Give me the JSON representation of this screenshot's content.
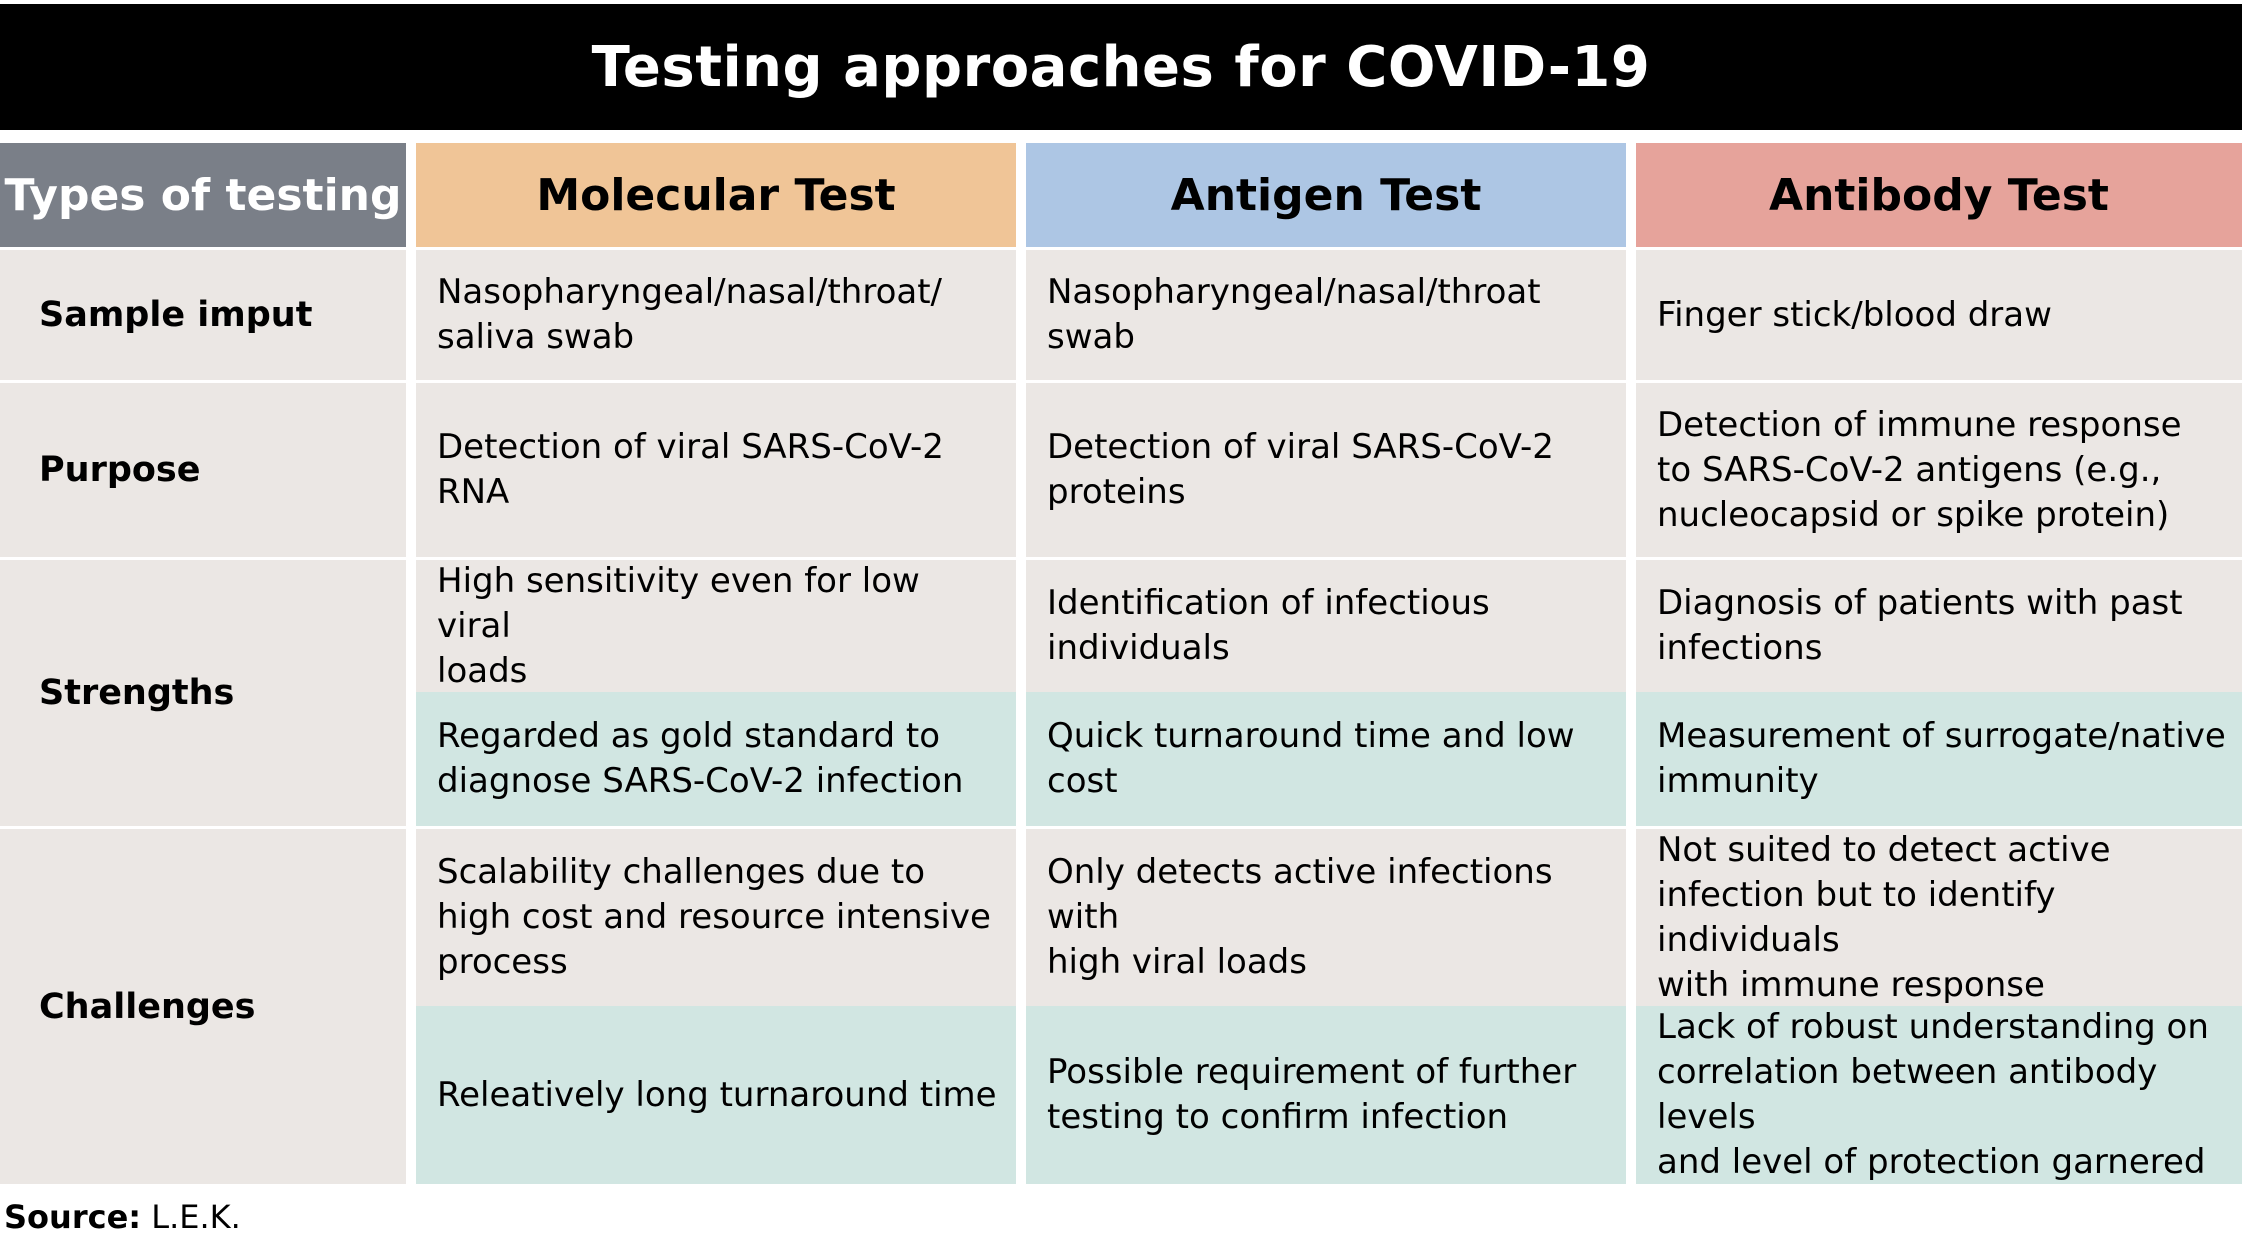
{
  "title": "Testing approaches for COVID-19",
  "header": {
    "types": "Types of testing",
    "molecular": "Molecular Test",
    "antigen": "Antigen Test",
    "antibody": "Antibody Test"
  },
  "rows": {
    "sample": {
      "label": "Sample imput",
      "molecular": "Nasopharyngeal/nasal/throat/\nsaliva swab",
      "antigen": "Nasopharyngeal/nasal/throat swab",
      "antibody": "Finger stick/blood draw"
    },
    "purpose": {
      "label": "Purpose",
      "molecular": "Detection of viral SARS-CoV-2 RNA",
      "antigen": "Detection of viral SARS-CoV-2\nproteins",
      "antibody": "Detection of immune response\nto SARS-CoV-2 antigens (e.g.,\nnucleocapsid or spike protein)"
    },
    "strengths": {
      "label": "Strengths",
      "items": [
        {
          "molecular": "High sensitivity even for low viral\nloads",
          "antigen": "Identification of infectious\nindividuals",
          "antibody": "Diagnosis of patients with past\ninfections"
        },
        {
          "molecular": "Regarded as gold standard to\ndiagnose SARS-CoV-2 infection",
          "antigen": "Quick turnaround time and low\ncost",
          "antibody": "Measurement of surrogate/native\nimmunity"
        }
      ]
    },
    "challenges": {
      "label": "Challenges",
      "items": [
        {
          "molecular": "Scalability challenges due to\nhigh cost and resource intensive\nprocess",
          "antigen": "Only detects active infections with\nhigh viral loads",
          "antibody": "Not suited to detect active\ninfection but to identify individuals\nwith immune response"
        },
        {
          "molecular": "Releatively long turnaround time",
          "antigen": "Possible requirement of further\ntesting to confirm infection",
          "antibody": "Lack of robust understanding on\ncorrelation between antibody levels\nand level of protection garnered"
        }
      ]
    }
  },
  "source": {
    "label": "Source:",
    "text": " L.E.K."
  },
  "colors": {
    "title_bg": "#000000",
    "types_header": "#7a7f88",
    "molecular_header": "#f0c597",
    "antigen_header": "#adc6e4",
    "antibody_header": "#e6a39b",
    "cell_bg": "#ebe7e4",
    "teal_cell_bg": "#d1e6e2"
  }
}
